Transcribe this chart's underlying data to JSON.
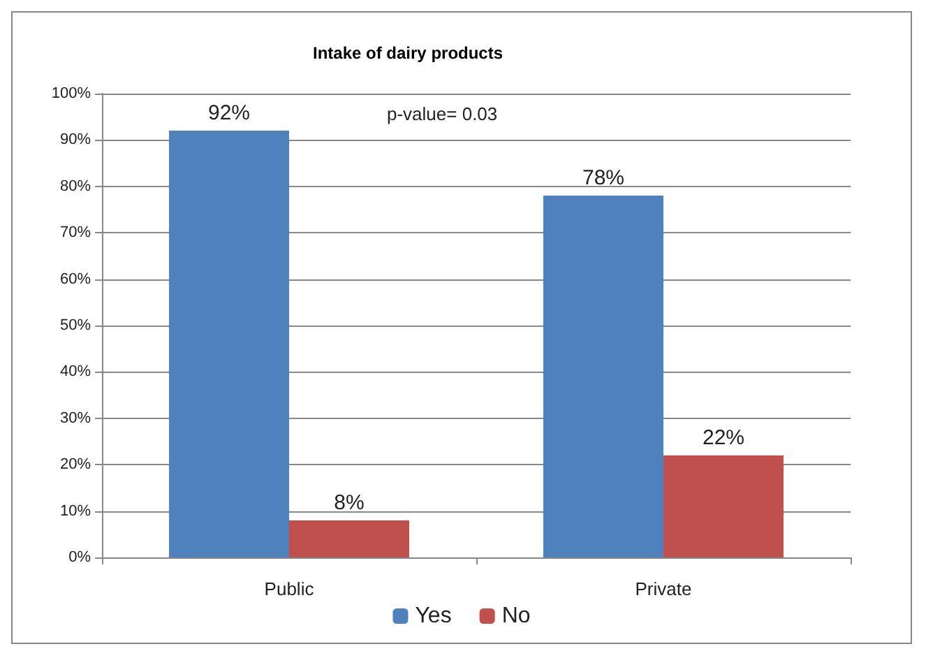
{
  "chart_data": {
    "type": "bar",
    "title": "Intake of dairy products",
    "categories": [
      "Public",
      "Private"
    ],
    "series": [
      {
        "name": "Yes",
        "color": "#4f81bd",
        "values": [
          92,
          78
        ],
        "value_labels": [
          "92%",
          "78%"
        ]
      },
      {
        "name": "No",
        "color": "#c0504d",
        "values": [
          8,
          22
        ],
        "value_labels": [
          "8%",
          "22%"
        ]
      }
    ],
    "ylim": [
      0,
      100
    ],
    "yticks": [
      {
        "value": 0,
        "label": "0%"
      },
      {
        "value": 10,
        "label": "10%"
      },
      {
        "value": 20,
        "label": "20%"
      },
      {
        "value": 30,
        "label": "30%"
      },
      {
        "value": 40,
        "label": "40%"
      },
      {
        "value": 50,
        "label": "50%"
      },
      {
        "value": 60,
        "label": "60%"
      },
      {
        "value": 70,
        "label": "70%"
      },
      {
        "value": 80,
        "label": "80%"
      },
      {
        "value": 90,
        "label": "90%"
      },
      {
        "value": 100,
        "label": "100%"
      }
    ],
    "grid": "y",
    "legend": "bottom",
    "annotations": [
      "p-value= 0.03"
    ]
  }
}
